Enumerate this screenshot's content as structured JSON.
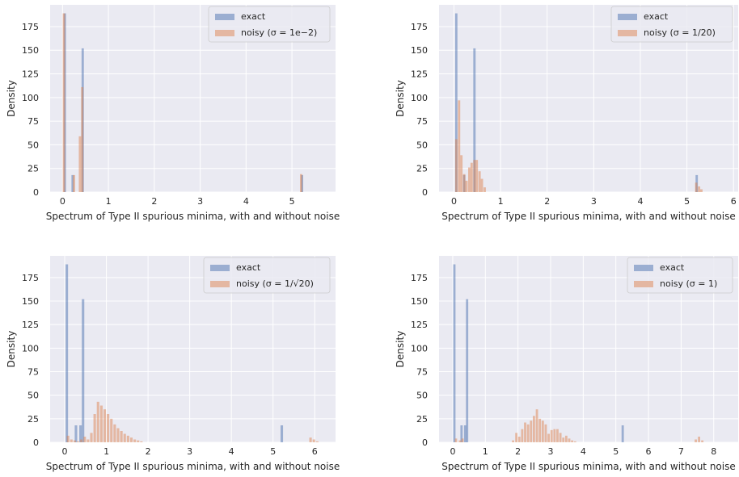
{
  "chart_data": [
    {
      "type": "bar",
      "subtype": "histogram",
      "xlabel": "Spectrum of Type II spurious minima, with and without noise",
      "ylabel": "Density",
      "xlim": [
        -0.27,
        5.95
      ],
      "ylim": [
        0,
        198
      ],
      "xticks": [
        0,
        1,
        2,
        3,
        4,
        5
      ],
      "yticks": [
        0,
        25,
        50,
        75,
        100,
        125,
        150,
        175
      ],
      "legend_position": "top-right",
      "bin_width": 0.05,
      "series": [
        {
          "name": "exact",
          "color": "#4c72b0",
          "bins": [
            [
              0.05,
              189
            ],
            [
              0.22,
              18
            ],
            [
              0.44,
              152
            ],
            [
              5.22,
              18
            ]
          ]
        },
        {
          "name": "noisy ($\\sigma = 1e-2$)",
          "color": "#dd8452",
          "bins": [
            [
              0.03,
              189
            ],
            [
              0.25,
              18
            ],
            [
              0.38,
              59
            ],
            [
              0.43,
              111
            ],
            [
              5.2,
              19
            ]
          ]
        }
      ]
    },
    {
      "type": "bar",
      "subtype": "histogram",
      "xlabel": "Spectrum of Type II spurious minima, with and without noise",
      "ylabel": "Density",
      "xlim": [
        -0.32,
        6.1
      ],
      "ylim": [
        0,
        198
      ],
      "xticks": [
        0,
        1,
        2,
        3,
        4,
        5,
        6
      ],
      "yticks": [
        0,
        25,
        50,
        75,
        100,
        125,
        150,
        175
      ],
      "legend_position": "top-right",
      "bin_width": 0.05,
      "series": [
        {
          "name": "exact",
          "color": "#4c72b0",
          "bins": [
            [
              0.05,
              189
            ],
            [
              0.22,
              18
            ],
            [
              0.44,
              152
            ],
            [
              5.21,
              18
            ]
          ]
        },
        {
          "name": "noisy ($\\sigma = 1/20$)",
          "color": "#dd8452",
          "bins": [
            [
              0.05,
              56
            ],
            [
              0.11,
              97
            ],
            [
              0.16,
              39
            ],
            [
              0.22,
              19
            ],
            [
              0.27,
              12
            ],
            [
              0.33,
              26
            ],
            [
              0.38,
              31
            ],
            [
              0.44,
              34
            ],
            [
              0.49,
              34
            ],
            [
              0.55,
              22
            ],
            [
              0.6,
              14
            ],
            [
              0.66,
              5
            ],
            [
              5.2,
              10
            ],
            [
              5.26,
              6
            ],
            [
              5.31,
              3
            ]
          ]
        }
      ]
    },
    {
      "type": "bar",
      "subtype": "histogram",
      "xlabel": "Spectrum of Type II spurious minima, with and without noise",
      "ylabel": "Density",
      "xlim": [
        -0.35,
        6.5
      ],
      "ylim": [
        0,
        198
      ],
      "xticks": [
        0,
        1,
        2,
        3,
        4,
        5,
        6
      ],
      "yticks": [
        0,
        25,
        50,
        75,
        100,
        125,
        150,
        175
      ],
      "legend_position": "top-right",
      "bin_width": 0.06,
      "series": [
        {
          "name": "exact",
          "color": "#4c72b0",
          "bins": [
            [
              0.05,
              189
            ],
            [
              0.27,
              18
            ],
            [
              0.38,
              18
            ],
            [
              0.44,
              152
            ],
            [
              5.21,
              18
            ]
          ]
        },
        {
          "name": "noisy ($\\sigma = 1/\\sqrt{20}$)",
          "color": "#dd8452",
          "bins": [
            [
              0.08,
              7
            ],
            [
              0.16,
              3
            ],
            [
              0.24,
              2
            ],
            [
              0.32,
              1
            ],
            [
              0.4,
              3
            ],
            [
              0.48,
              6
            ],
            [
              0.56,
              3
            ],
            [
              0.64,
              10
            ],
            [
              0.72,
              30
            ],
            [
              0.8,
              43
            ],
            [
              0.88,
              39
            ],
            [
              0.96,
              35
            ],
            [
              1.04,
              30
            ],
            [
              1.12,
              25
            ],
            [
              1.2,
              19
            ],
            [
              1.28,
              15
            ],
            [
              1.36,
              12
            ],
            [
              1.44,
              9
            ],
            [
              1.52,
              7
            ],
            [
              1.6,
              5
            ],
            [
              1.68,
              3
            ],
            [
              1.76,
              2
            ],
            [
              1.84,
              1
            ],
            [
              5.9,
              5
            ],
            [
              5.98,
              3
            ],
            [
              6.06,
              1
            ]
          ]
        }
      ]
    },
    {
      "type": "bar",
      "subtype": "histogram",
      "xlabel": "Spectrum of Type II spurious minima, with and without noise",
      "ylabel": "Density",
      "xlim": [
        -0.42,
        8.75
      ],
      "ylim": [
        0,
        198
      ],
      "xticks": [
        0,
        1,
        2,
        3,
        4,
        5,
        6,
        7,
        8
      ],
      "yticks": [
        0,
        25,
        50,
        75,
        100,
        125,
        150,
        175
      ],
      "legend_position": "top-right",
      "bin_width": 0.07,
      "series": [
        {
          "name": "exact",
          "color": "#4c72b0",
          "bins": [
            [
              0.05,
              189
            ],
            [
              0.27,
              18
            ],
            [
              0.38,
              18
            ],
            [
              0.44,
              152
            ],
            [
              5.21,
              18
            ]
          ]
        },
        {
          "name": "noisy ($\\sigma = 1$)",
          "color": "#dd8452",
          "bins": [
            [
              0.1,
              4
            ],
            [
              0.22,
              2
            ],
            [
              0.3,
              4
            ],
            [
              1.85,
              2
            ],
            [
              1.95,
              10
            ],
            [
              2.04,
              6
            ],
            [
              2.13,
              14
            ],
            [
              2.22,
              21
            ],
            [
              2.31,
              19
            ],
            [
              2.4,
              23
            ],
            [
              2.49,
              28
            ],
            [
              2.58,
              35
            ],
            [
              2.67,
              25
            ],
            [
              2.76,
              23
            ],
            [
              2.85,
              19
            ],
            [
              2.94,
              9
            ],
            [
              3.03,
              13
            ],
            [
              3.12,
              14
            ],
            [
              3.21,
              14
            ],
            [
              3.3,
              10
            ],
            [
              3.39,
              5
            ],
            [
              3.48,
              7
            ],
            [
              3.57,
              4
            ],
            [
              3.66,
              2
            ],
            [
              3.75,
              1
            ],
            [
              7.45,
              3
            ],
            [
              7.55,
              6
            ],
            [
              7.65,
              2
            ]
          ]
        }
      ]
    }
  ]
}
